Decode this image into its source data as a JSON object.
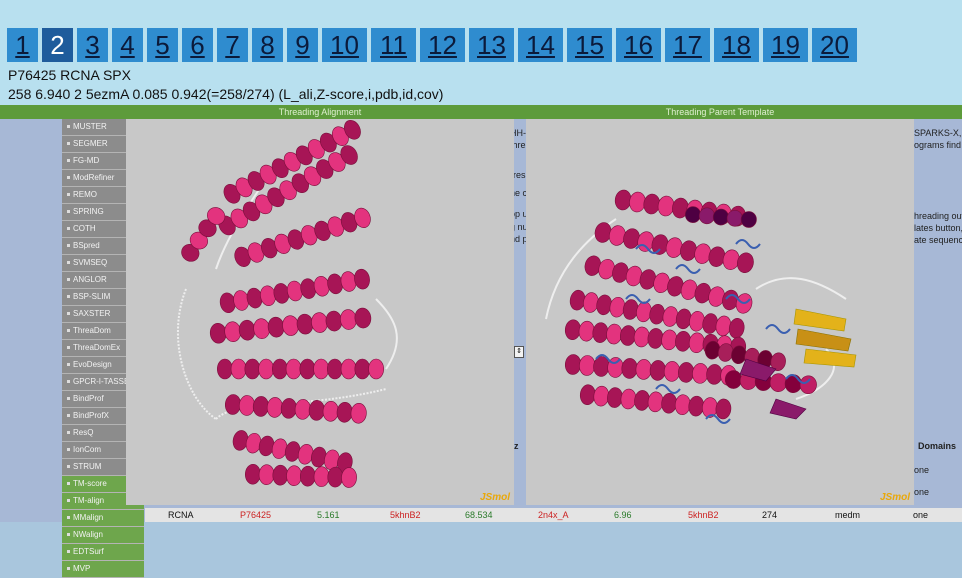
{
  "pages": [
    "1",
    "2",
    "3",
    "4",
    "5",
    "6",
    "7",
    "8",
    "9",
    "10",
    "11",
    "12",
    "13",
    "14",
    "15",
    "16",
    "17",
    "18",
    "19",
    "20"
  ],
  "active_page": "2",
  "title_line": "P76425 RCNA SPX",
  "info_line": "258 6.940 2 5ezmA 0.085 0.942(=258/274) (L_ali,Z-score,i,pdb,id,cov)",
  "sidebar": {
    "items": [
      "MUSTER",
      "SEGMER",
      "FG-MD",
      "ModRefiner",
      "REMO",
      "SPRING",
      "COTH",
      "BSpred",
      "SVMSEQ",
      "ANGLOR",
      "BSP-SLIM",
      "SAXSTER",
      "ThreaDom",
      "ThreaDomEx",
      "EvoDesign",
      "GPCR-I-TASSER",
      "BindProf",
      "BindProfX",
      "ResQ",
      "IonCom",
      "STRUM",
      "TM-score",
      "TM-align",
      "MMalign",
      "NWalign",
      "EDTSurf",
      "MVP"
    ]
  },
  "viewers": {
    "left_title": "Threading Alignment",
    "right_title": "Threading Parent Template",
    "watermark": "JSmol"
  },
  "background_text": {
    "left_fragments": [
      "HH-",
      "thre",
      "rres",
      "he c",
      "op u",
      "g nu",
      "nd p"
    ],
    "right_fragments": [
      "SPARKS-X, ",
      "ograms find",
      "hreading out",
      "lates button,",
      "ate sequenc"
    ],
    "domains_header": "Domains",
    "partial_header": "z",
    "none_values": [
      "one",
      "one",
      "one"
    ]
  },
  "bottom_row": {
    "c1": "RCNA",
    "c2": "P76425",
    "c3": "5.161",
    "c4": "5khnB2",
    "c5": "68.534",
    "c6": "2n4x_A",
    "c7": "6.96",
    "c8": "5khnB2",
    "c9": "274",
    "c10": "medm",
    "c11": "one"
  },
  "colors": {
    "helix": "#e3337e",
    "header_bg": "#b8e0ef",
    "tab": "#2f8ccf",
    "tab_active": "#1f5c9c",
    "green_bar": "#5d9b3b",
    "jsmol": "#e9a80a",
    "template_purple": "#8a1a6a",
    "template_blue": "#3a5fb0",
    "template_gold": "#e3b21a"
  }
}
